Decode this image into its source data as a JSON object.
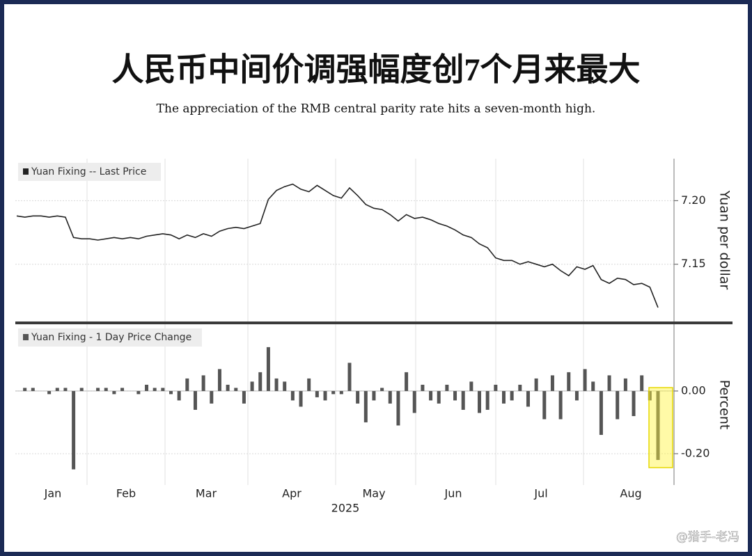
{
  "title": "人民币中间价调强幅度创7个月来最大",
  "subtitle": "The appreciation of the RMB central parity rate hits a seven-month high.",
  "x_axis": {
    "months": [
      "Jan",
      "Feb",
      "Mar",
      "Apr",
      "May",
      "Jun",
      "Jul",
      "Aug"
    ],
    "label": "2025"
  },
  "watermark": "@猎手-老冯",
  "chart_data": [
    {
      "type": "line",
      "legend": "Yuan Fixing -- Last Price",
      "ylabel": "Yuan per dollar",
      "color": "#222222",
      "ylim": [
        7.105,
        7.233
      ],
      "yticks": [
        {
          "value": 7.15,
          "label": "7.15"
        },
        {
          "value": 7.2,
          "label": "7.20"
        }
      ],
      "grid": true,
      "values": [
        7.188,
        7.187,
        7.188,
        7.188,
        7.187,
        7.188,
        7.187,
        7.171,
        7.17,
        7.17,
        7.169,
        7.17,
        7.171,
        7.17,
        7.171,
        7.17,
        7.172,
        7.173,
        7.174,
        7.173,
        7.17,
        7.173,
        7.171,
        7.174,
        7.172,
        7.176,
        7.178,
        7.179,
        7.178,
        7.18,
        7.182,
        7.201,
        7.208,
        7.211,
        7.213,
        7.209,
        7.207,
        7.212,
        7.208,
        7.204,
        7.202,
        7.21,
        7.204,
        7.197,
        7.194,
        7.193,
        7.189,
        7.184,
        7.189,
        7.186,
        7.187,
        7.185,
        7.182,
        7.18,
        7.177,
        7.173,
        7.171,
        7.166,
        7.163,
        7.155,
        7.153,
        7.153,
        7.15,
        7.152,
        7.15,
        7.148,
        7.15,
        7.145,
        7.141,
        7.148,
        7.146,
        7.149,
        7.138,
        7.135,
        7.139,
        7.138,
        7.134,
        7.135,
        7.132,
        7.116
      ]
    },
    {
      "type": "bar",
      "legend": "Yuan Fixing - 1 Day Price Change",
      "ylabel": "Percent",
      "color": "#555555",
      "ylim": [
        -0.3,
        0.213
      ],
      "yticks": [
        {
          "value": -0.2,
          "label": "-0.20"
        },
        {
          "value": 0,
          "label": "0.00"
        }
      ],
      "grid": true,
      "values": [
        0.0,
        0.01,
        0.01,
        0.0,
        -0.01,
        0.01,
        0.01,
        -0.25,
        0.01,
        0.0,
        0.01,
        0.01,
        -0.01,
        0.01,
        0.0,
        -0.01,
        0.02,
        0.01,
        0.01,
        -0.01,
        -0.03,
        0.04,
        -0.06,
        0.05,
        -0.04,
        0.07,
        0.02,
        0.01,
        -0.04,
        0.03,
        0.06,
        0.14,
        0.04,
        0.03,
        -0.03,
        -0.05,
        0.04,
        -0.02,
        -0.03,
        -0.01,
        -0.01,
        0.09,
        -0.04,
        -0.1,
        -0.03,
        0.01,
        -0.04,
        -0.11,
        0.06,
        -0.07,
        0.02,
        -0.03,
        -0.04,
        0.02,
        -0.03,
        -0.06,
        0.03,
        -0.07,
        -0.06,
        0.02,
        -0.04,
        -0.03,
        0.02,
        -0.05,
        0.04,
        -0.09,
        0.05,
        -0.09,
        0.06,
        -0.03,
        0.07,
        0.03,
        -0.14,
        0.05,
        -0.09,
        0.04,
        -0.08,
        0.05,
        -0.03,
        -0.22
      ]
    }
  ]
}
